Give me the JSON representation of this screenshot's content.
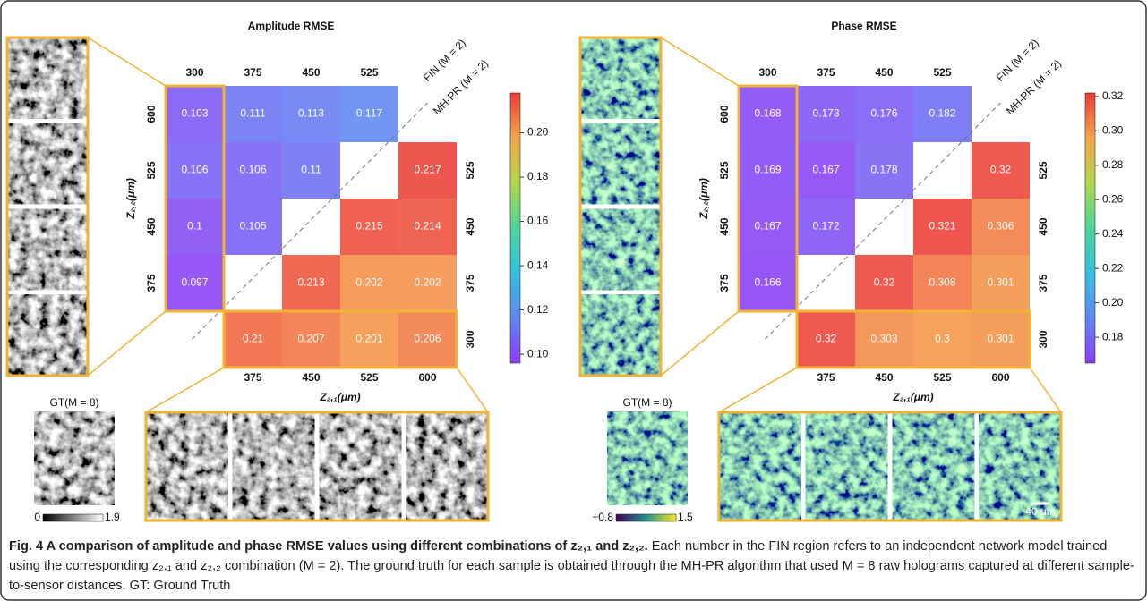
{
  "chart_data": [
    {
      "type": "heatmap",
      "title": "Amplitude RMSE",
      "x_label": "Z₂,₁(μm)",
      "y_label": "Z₂,₂(μm)",
      "x_top": [
        300,
        375,
        450,
        525
      ],
      "x_bottom": [
        375,
        450,
        525,
        600
      ],
      "y_left": [
        600,
        525,
        450,
        375
      ],
      "y_right": [
        525,
        450,
        375,
        300
      ],
      "series": [
        {
          "name": "MH-PR (M = 2)",
          "values": [
            [
              0.103,
              0.111,
              0.113,
              0.117
            ],
            [
              0.106,
              0.106,
              0.11,
              null
            ],
            [
              0.1,
              0.105,
              null,
              null
            ],
            [
              0.097,
              null,
              null,
              null
            ]
          ]
        },
        {
          "name": "FIN (M = 2)",
          "values": [
            [
              null,
              null,
              null,
              0.217
            ],
            [
              null,
              null,
              0.215,
              0.214
            ],
            [
              null,
              0.213,
              0.202,
              0.202
            ],
            [
              0.21,
              0.207,
              0.201,
              0.206
            ]
          ]
        }
      ],
      "clim": [
        0.096,
        0.218
      ],
      "cticks": [
        {
          "value": 0.2,
          "label": "0.20"
        },
        {
          "value": 0.18,
          "label": "0.18"
        },
        {
          "value": 0.16,
          "label": "0.16"
        },
        {
          "value": 0.14,
          "label": "0.14"
        },
        {
          "value": 0.12,
          "label": "0.12"
        },
        {
          "value": 0.1,
          "label": "0.10"
        }
      ],
      "colormap": [
        "#8a3cf5",
        "#5f86f2",
        "#33c0de",
        "#4ad69a",
        "#b2d84a",
        "#f5a64a",
        "#ec3b36"
      ],
      "gt_label": "GT(M = 8)",
      "gt_colorbar_ticks": [
        0,
        1.9
      ],
      "gt_colormap": [
        "#000000",
        "#ffffff"
      ]
    },
    {
      "type": "heatmap",
      "title": "Phase RMSE",
      "x_label": "Z₂,₁(μm)",
      "y_label": "Z₂,₂(μm)",
      "x_top": [
        300,
        375,
        450,
        525
      ],
      "x_bottom": [
        375,
        450,
        525,
        600
      ],
      "y_left": [
        600,
        525,
        450,
        375
      ],
      "y_right": [
        525,
        450,
        375,
        300
      ],
      "series": [
        {
          "name": "MH-PR (M = 2)",
          "values": [
            [
              0.168,
              0.173,
              0.176,
              0.182
            ],
            [
              0.169,
              0.167,
              0.178,
              null
            ],
            [
              0.167,
              0.172,
              null,
              null
            ],
            [
              0.166,
              null,
              null,
              null
            ]
          ]
        },
        {
          "name": "FIN (M = 2)",
          "values": [
            [
              null,
              null,
              null,
              0.32
            ],
            [
              null,
              null,
              0.321,
              0.306
            ],
            [
              null,
              0.32,
              0.308,
              0.301
            ],
            [
              0.32,
              0.303,
              0.3,
              0.301
            ]
          ]
        }
      ],
      "clim": [
        0.165,
        0.322
      ],
      "cticks": [
        0.32,
        {
          "value": 0.3,
          "label": "0.30"
        },
        0.28,
        0.26,
        0.24,
        0.22,
        {
          "value": 0.2,
          "label": "0.20"
        },
        0.18
      ],
      "colormap": [
        "#8a3cf5",
        "#5f86f2",
        "#33c0de",
        "#4ad69a",
        "#b2d84a",
        "#f5a64a",
        "#ec3b36"
      ],
      "gt_label": "GT(M = 8)",
      "gt_colorbar_ticks": [
        {
          "value": -0.8,
          "label": "−0.8"
        },
        1.5
      ],
      "gt_colormap": [
        "#440154",
        "#21918c",
        "#fde725"
      ],
      "scale_bar": "40 μm"
    }
  ],
  "caption": {
    "title": "Fig. 4 A comparison of amplitude and phase RMSE values using different combinations of z₂,₁ and z₂,₂.",
    "text": "Each number in the FIN region refers to an independent network model trained using the corresponding z₂,₁ and z₂,₂ combination (M = 2). The ground truth for each sample is obtained through the MH-PR algorithm that used M = 8 raw holograms captured at different sample-to-sensor distances. GT: Ground Truth"
  }
}
